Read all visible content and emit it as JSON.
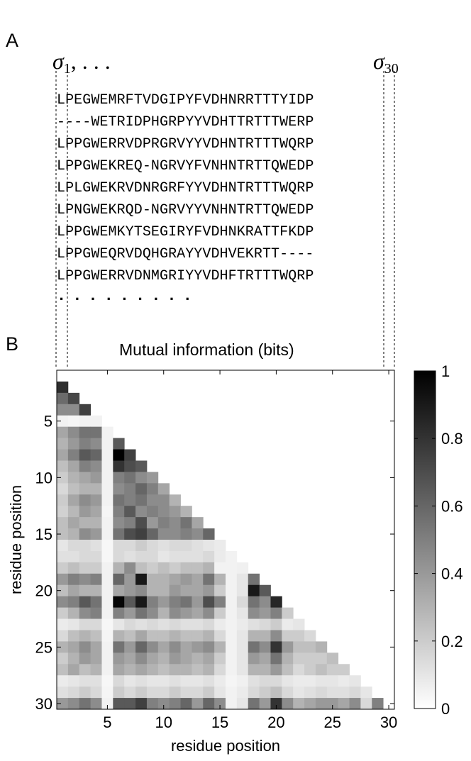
{
  "panel_a": {
    "label": "A",
    "sigma_left": "σ",
    "sigma_left_sub": "1",
    "sigma_left_suffix": ", . . .",
    "sigma_right": "σ",
    "sigma_right_sub": "30",
    "sequences": [
      "LPEGWEMRFTVDGIPYFVDHNRRTTTYIDP",
      "----WETRIDPHGRPYYVDHTTRTTTWERP",
      "LPPGWERRVDPRGRVYYVDHNTRTTTWQRP",
      "LPPGWEKREQ-NGRVYFVNHNTRTTQWEDP",
      "LPLGWEKRVDNRGRFYYVDHNTRTTTWQRP",
      "LPNGWEKRQD-NGRVYYVNHNTRTTQWEDP",
      "LPPGWEMKYTSEGIRYFVDHNKRATTFKDP",
      "LPPGWEQRVDQHGRAYYVDHVEKRTT----",
      "LPPGWERRVDNMGRIYYVDHFTRTTTWQRP"
    ],
    "ellipsis": "........."
  },
  "panel_b": {
    "label": "B"
  },
  "chart_data": {
    "type": "heatmap",
    "title": "Mutual information (bits)",
    "xlabel": "residue position",
    "ylabel": "residue position",
    "xticks": [
      5,
      10,
      15,
      20,
      25,
      30
    ],
    "yticks": [
      5,
      10,
      15,
      20,
      25,
      30
    ],
    "xlim": [
      0.5,
      30.5
    ],
    "ylim": [
      0.5,
      30.5
    ],
    "colorbar": {
      "min": 0,
      "max": 1,
      "ticks": [
        "0",
        "0.2",
        "0.4",
        "0.6",
        "0.8",
        "1"
      ],
      "colormap": "gray-reversed"
    },
    "note": "lower triangle; row i lists MI between residue i and residues 1..i-1",
    "rows": [
      [],
      [
        0.82
      ],
      [
        0.58,
        0.72
      ],
      [
        0.45,
        0.45,
        0.75
      ],
      [
        0.05,
        0.04,
        0.05,
        0.05
      ],
      [
        0.35,
        0.45,
        0.55,
        0.55,
        0.05
      ],
      [
        0.3,
        0.4,
        0.5,
        0.45,
        0.05,
        0.65
      ],
      [
        0.35,
        0.5,
        0.65,
        0.6,
        0.05,
        1.0,
        0.75
      ],
      [
        0.25,
        0.35,
        0.5,
        0.45,
        0.05,
        0.8,
        0.7,
        0.65
      ],
      [
        0.2,
        0.3,
        0.35,
        0.4,
        0.05,
        0.5,
        0.55,
        0.45,
        0.4
      ],
      [
        0.15,
        0.25,
        0.3,
        0.3,
        0.05,
        0.45,
        0.5,
        0.6,
        0.5,
        0.35
      ],
      [
        0.2,
        0.35,
        0.45,
        0.4,
        0.05,
        0.55,
        0.5,
        0.55,
        0.45,
        0.45,
        0.3
      ],
      [
        0.18,
        0.28,
        0.4,
        0.35,
        0.04,
        0.5,
        0.65,
        0.45,
        0.5,
        0.45,
        0.4,
        0.3
      ],
      [
        0.25,
        0.35,
        0.3,
        0.3,
        0.05,
        0.45,
        0.5,
        0.7,
        0.4,
        0.5,
        0.45,
        0.55,
        0.35
      ],
      [
        0.25,
        0.3,
        0.45,
        0.4,
        0.05,
        0.55,
        0.7,
        0.75,
        0.6,
        0.45,
        0.45,
        0.5,
        0.45,
        0.6
      ],
      [
        0.1,
        0.15,
        0.15,
        0.12,
        0.03,
        0.15,
        0.15,
        0.2,
        0.15,
        0.12,
        0.15,
        0.15,
        0.12,
        0.1,
        0.08
      ],
      [
        0.12,
        0.12,
        0.15,
        0.15,
        0.03,
        0.15,
        0.12,
        0.15,
        0.15,
        0.1,
        0.12,
        0.12,
        0.12,
        0.15,
        0.08,
        0.05
      ],
      [
        0.2,
        0.25,
        0.2,
        0.2,
        0.05,
        0.3,
        0.45,
        0.25,
        0.2,
        0.25,
        0.2,
        0.25,
        0.25,
        0.3,
        0.05,
        0.05,
        0.06
      ],
      [
        0.4,
        0.5,
        0.45,
        0.5,
        0.05,
        0.6,
        0.4,
        0.9,
        0.3,
        0.3,
        0.35,
        0.4,
        0.35,
        0.55,
        0.3,
        0.05,
        0.1,
        0.55
      ],
      [
        0.25,
        0.35,
        0.3,
        0.3,
        0.05,
        0.35,
        0.4,
        0.45,
        0.3,
        0.3,
        0.4,
        0.35,
        0.35,
        0.4,
        0.2,
        0.05,
        0.1,
        0.9,
        0.65
      ],
      [
        0.45,
        0.5,
        0.65,
        0.55,
        0.05,
        0.98,
        0.65,
        0.9,
        0.5,
        0.4,
        0.5,
        0.55,
        0.4,
        0.7,
        0.5,
        0.05,
        0.15,
        0.55,
        0.45,
        0.85
      ],
      [
        0.2,
        0.3,
        0.45,
        0.5,
        0.05,
        0.5,
        0.4,
        0.55,
        0.45,
        0.3,
        0.45,
        0.4,
        0.35,
        0.45,
        0.2,
        0.05,
        0.1,
        0.45,
        0.4,
        0.5,
        0.2
      ],
      [
        0.08,
        0.1,
        0.15,
        0.15,
        0.03,
        0.1,
        0.15,
        0.12,
        0.15,
        0.12,
        0.15,
        0.12,
        0.12,
        0.15,
        0.08,
        0.05,
        0.08,
        0.12,
        0.15,
        0.2,
        0.08,
        0.1
      ],
      [
        0.15,
        0.25,
        0.3,
        0.25,
        0.04,
        0.3,
        0.25,
        0.35,
        0.25,
        0.25,
        0.3,
        0.25,
        0.25,
        0.3,
        0.15,
        0.05,
        0.1,
        0.3,
        0.3,
        0.45,
        0.2,
        0.2,
        0.15
      ],
      [
        0.3,
        0.35,
        0.45,
        0.35,
        0.05,
        0.55,
        0.4,
        0.6,
        0.45,
        0.35,
        0.45,
        0.35,
        0.4,
        0.45,
        0.3,
        0.05,
        0.1,
        0.55,
        0.45,
        0.8,
        0.4,
        0.25,
        0.25,
        0.3
      ],
      [
        0.2,
        0.3,
        0.4,
        0.35,
        0.05,
        0.4,
        0.35,
        0.45,
        0.35,
        0.3,
        0.4,
        0.35,
        0.3,
        0.35,
        0.2,
        0.05,
        0.1,
        0.4,
        0.35,
        0.55,
        0.3,
        0.2,
        0.2,
        0.2,
        0.25
      ],
      [
        0.25,
        0.35,
        0.25,
        0.3,
        0.05,
        0.35,
        0.3,
        0.35,
        0.3,
        0.25,
        0.3,
        0.3,
        0.25,
        0.3,
        0.15,
        0.05,
        0.1,
        0.3,
        0.3,
        0.4,
        0.25,
        0.15,
        0.2,
        0.25,
        0.2,
        0.2
      ],
      [
        0.08,
        0.1,
        0.12,
        0.12,
        0.03,
        0.15,
        0.1,
        0.12,
        0.1,
        0.1,
        0.12,
        0.1,
        0.1,
        0.12,
        0.08,
        0.04,
        0.06,
        0.12,
        0.15,
        0.15,
        0.1,
        0.08,
        0.08,
        0.1,
        0.1,
        0.08,
        0.1
      ],
      [
        0.12,
        0.15,
        0.2,
        0.15,
        0.04,
        0.2,
        0.15,
        0.2,
        0.15,
        0.15,
        0.2,
        0.15,
        0.15,
        0.2,
        0.1,
        0.05,
        0.08,
        0.15,
        0.2,
        0.25,
        0.15,
        0.1,
        0.12,
        0.15,
        0.12,
        0.12,
        0.15,
        0.1
      ],
      [
        0.4,
        0.45,
        0.55,
        0.45,
        0.05,
        0.65,
        0.65,
        0.75,
        0.5,
        0.45,
        0.5,
        0.6,
        0.4,
        0.6,
        0.45,
        0.05,
        0.1,
        0.55,
        0.4,
        0.8,
        0.45,
        0.3,
        0.35,
        0.4,
        0.4,
        0.35,
        0.45,
        0.15,
        0.5
      ]
    ]
  }
}
